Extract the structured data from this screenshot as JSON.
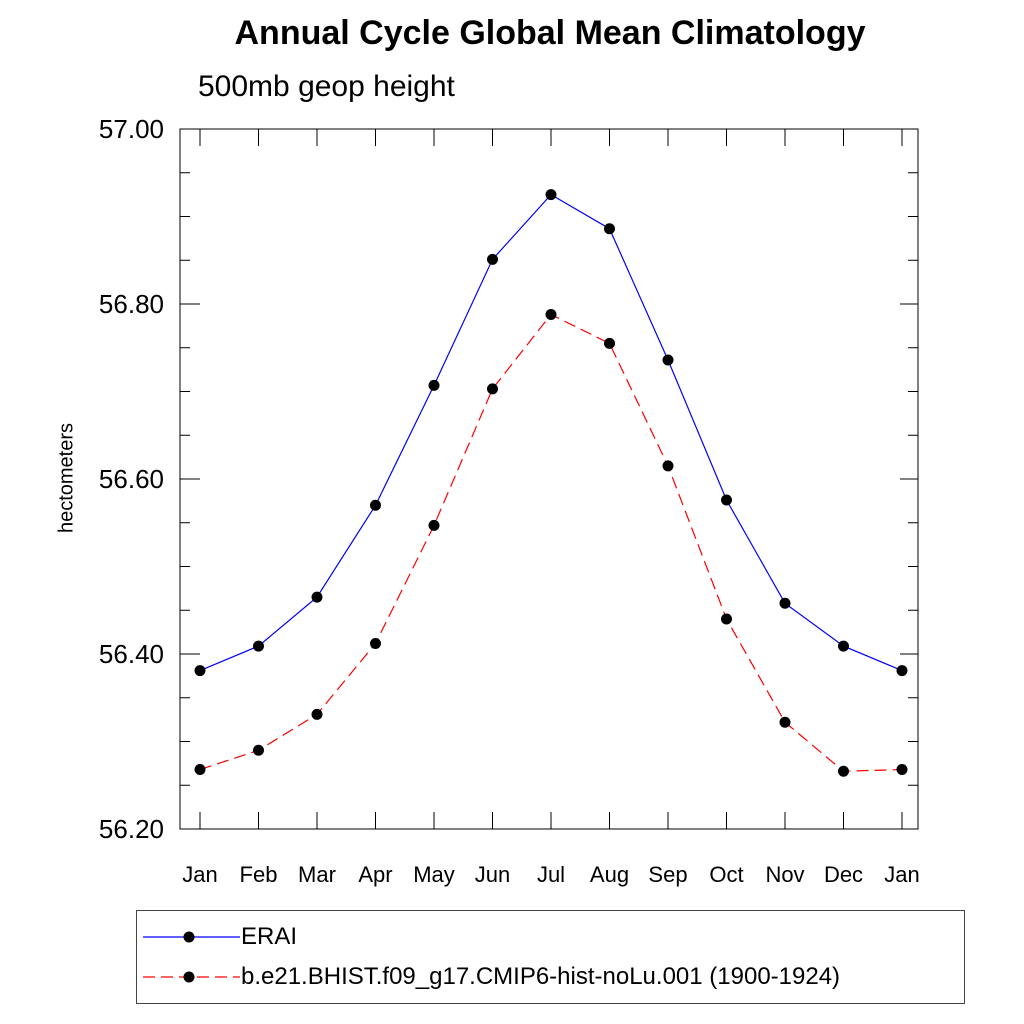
{
  "chart_data": {
    "type": "line",
    "title": "Annual Cycle Global Mean Climatology",
    "subtitle": "500mb geop height",
    "xlabel": "",
    "ylabel": "hectometers",
    "categories": [
      "Jan",
      "Feb",
      "Mar",
      "Apr",
      "May",
      "Jun",
      "Jul",
      "Aug",
      "Sep",
      "Oct",
      "Nov",
      "Dec",
      "Jan"
    ],
    "ylim": [
      56.2,
      57.0
    ],
    "yticks": [
      "56.20",
      "56.40",
      "56.60",
      "56.80",
      "57.00"
    ],
    "y_minor_step": 0.05,
    "series": [
      {
        "name": "ERAI",
        "color": "#0000ff",
        "dash": "solid",
        "marker": "filled-circle",
        "values": [
          56.381,
          56.409,
          56.465,
          56.57,
          56.707,
          56.851,
          56.925,
          56.886,
          56.736,
          56.576,
          56.458,
          56.409,
          56.381
        ]
      },
      {
        "name": "b.e21.BHIST.f09_g17.CMIP6-hist-noLu.001 (1900-1924)",
        "color": "#ff0000",
        "dash": "dashed",
        "marker": "filled-circle",
        "values": [
          56.268,
          56.29,
          56.331,
          56.412,
          56.547,
          56.703,
          56.788,
          56.755,
          56.615,
          56.44,
          56.322,
          56.266,
          56.268
        ]
      }
    ],
    "grid": false,
    "legend_position": "bottom"
  }
}
